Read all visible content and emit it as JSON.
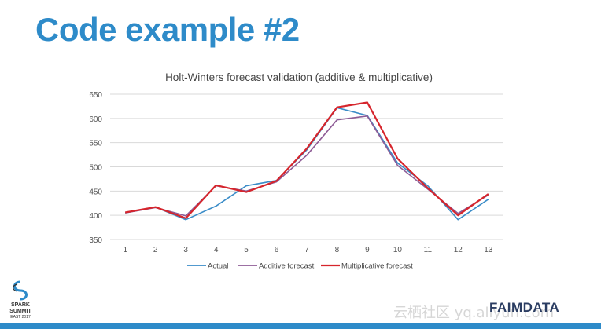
{
  "slide": {
    "title": "Code example #2",
    "logo_left": [
      "SPARK",
      "SUMMIT",
      "EAST 2017"
    ],
    "logo_right": "FAIMDATA",
    "watermark": "云栖社区 yq.aliyun.com"
  },
  "colors": {
    "title": "#2e8bc9",
    "actual": "#3a8cc8",
    "additive": "#8e5c96",
    "multiplicative": "#d6252c",
    "bottom_bar": "#2e8bc9"
  },
  "chart_data": {
    "type": "line",
    "title": "Holt-Winters forecast validation (additive & multiplicative)",
    "xlabel": "",
    "ylabel": "",
    "x": [
      1,
      2,
      3,
      4,
      5,
      6,
      7,
      8,
      9,
      10,
      11,
      12,
      13
    ],
    "ylim": [
      350,
      650
    ],
    "yticks": [
      350,
      400,
      450,
      500,
      550,
      600,
      650
    ],
    "grid": true,
    "legend_position": "bottom",
    "series": [
      {
        "name": "Actual",
        "values": [
          405,
          417,
          391,
          419,
          461,
          472,
          535,
          622,
          606,
          508,
          461,
          391,
          433
        ]
      },
      {
        "name": "Additive forecast",
        "values": [
          405,
          416,
          399,
          461,
          450,
          469,
          524,
          597,
          605,
          503,
          454,
          404,
          442
        ]
      },
      {
        "name": "Multiplicative forecast",
        "values": [
          406,
          417,
          394,
          462,
          448,
          471,
          538,
          623,
          633,
          517,
          456,
          400,
          444
        ]
      }
    ]
  }
}
